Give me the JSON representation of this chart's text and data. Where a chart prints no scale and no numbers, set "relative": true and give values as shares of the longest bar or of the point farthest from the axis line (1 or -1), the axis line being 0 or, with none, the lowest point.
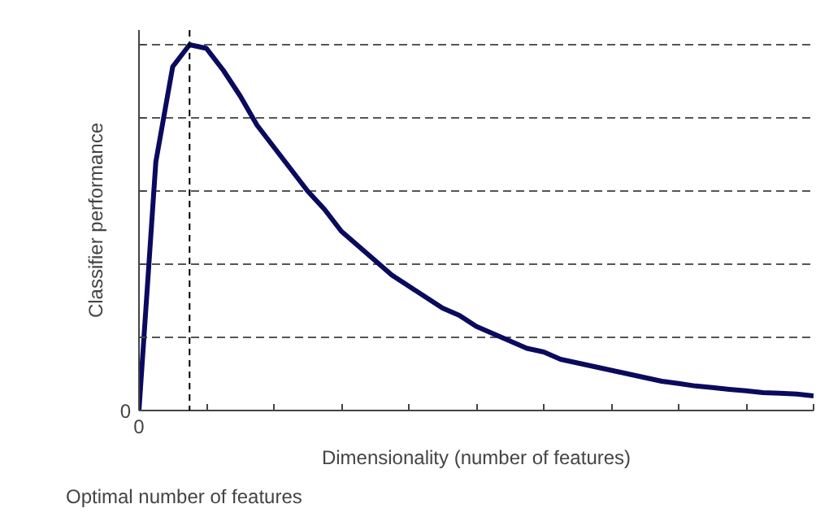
{
  "chart_data": {
    "type": "line",
    "relative": true,
    "xlabel": "Dimensionality (number of features)",
    "ylabel": "Classifier performance",
    "categories": [
      null,
      null,
      null,
      null,
      null,
      null,
      null,
      null,
      null,
      null,
      null,
      null,
      null,
      null,
      null,
      null,
      null,
      null,
      null,
      null,
      null,
      null,
      null,
      null,
      null,
      null,
      null,
      null,
      null,
      null,
      null,
      null,
      null,
      null,
      null,
      null,
      null,
      null,
      null,
      null,
      null
    ],
    "series": [
      {
        "color": "#0a0a5e",
        "values": [
          0,
          0.68,
          0.94,
          1.0,
          0.99,
          0.93,
          0.86,
          0.78,
          0.72,
          0.66,
          0.6,
          0.55,
          0.49,
          0.45,
          0.41,
          0.37,
          0.34,
          0.31,
          0.28,
          0.26,
          0.23,
          0.21,
          0.19,
          0.17,
          0.16,
          0.14,
          0.13,
          0.12,
          0.11,
          0.1,
          0.09,
          0.08,
          0.074,
          0.067,
          0.063,
          0.058,
          0.054,
          0.049,
          0.047,
          0.045,
          0.04
        ]
      }
    ],
    "annotations": [
      "0",
      "0",
      "Optimal number of features"
    ],
    "grid": "y",
    "marker": "none",
    "line_style": "solid"
  }
}
